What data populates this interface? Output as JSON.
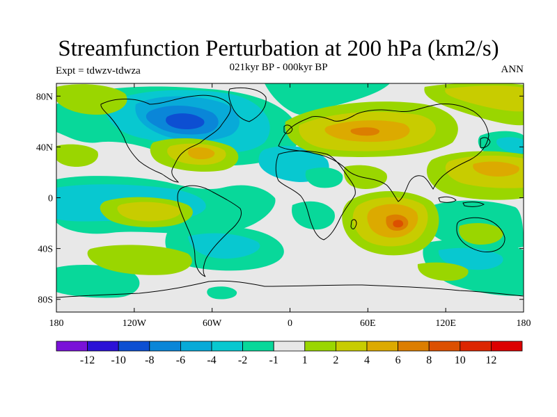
{
  "header": {
    "title": "Streamfunction Perturbation at 200 hPa (km2/s)",
    "subtitle": "021kyr BP - 000kyr BP",
    "left_label": "Expt = tdwzv-tdwza",
    "right_label": "ANN"
  },
  "map": {
    "projection": "cylindrical equidistant",
    "lon_range": [
      -180,
      180
    ],
    "lat_range": [
      -90,
      90
    ],
    "lat_ticks": [
      {
        "value": 80,
        "label": "80N"
      },
      {
        "value": 40,
        "label": "40N"
      },
      {
        "value": 0,
        "label": "0"
      },
      {
        "value": -40,
        "label": "40S"
      },
      {
        "value": -80,
        "label": "80S"
      }
    ],
    "lon_ticks": [
      {
        "value": -180,
        "label": "180"
      },
      {
        "value": -120,
        "label": "120W"
      },
      {
        "value": -60,
        "label": "60W"
      },
      {
        "value": 0,
        "label": "0"
      },
      {
        "value": 60,
        "label": "60E"
      },
      {
        "value": 120,
        "label": "120E"
      },
      {
        "value": 180,
        "label": "180"
      }
    ]
  },
  "chart_data": {
    "type": "heatmap",
    "title": "Streamfunction Perturbation at 200 hPa (km2/s)",
    "subtitle": "021kyr BP - 000kyr BP",
    "contour_levels": [
      -12,
      -10,
      -8,
      -6,
      -4,
      -2,
      -1,
      1,
      2,
      4,
      6,
      8,
      10,
      12
    ],
    "colorbar_labels": [
      "-12",
      "-10",
      "-8",
      "-6",
      "-4",
      "-2",
      "-1",
      "1",
      "2",
      "4",
      "6",
      "8",
      "10",
      "12"
    ],
    "colorbar_colors": [
      "#7a12d8",
      "#2b12d6",
      "#0d4fd2",
      "#0a86d8",
      "#08aad8",
      "#08c8d0",
      "#08d89a",
      "#e8e8e8",
      "#9ad600",
      "#c8cc00",
      "#dcaa00",
      "#dc7e00",
      "#dc5000",
      "#dc2600",
      "#dc0000"
    ],
    "features": [
      {
        "lon": -90,
        "lat": 52,
        "value": -6
      },
      {
        "lon": -135,
        "lat": 2,
        "value": -2
      },
      {
        "lon": -75,
        "lat": 32,
        "value": 4
      },
      {
        "lon": 55,
        "lat": 50,
        "value": 6
      },
      {
        "lon": 80,
        "lat": -22,
        "value": 8
      },
      {
        "lon": 155,
        "lat": 20,
        "value": 6
      },
      {
        "lon": -120,
        "lat": -10,
        "value": 2
      },
      {
        "lon": 40,
        "lat": 10,
        "value": 2
      },
      {
        "lon": -60,
        "lat": -35,
        "value": -2
      },
      {
        "lon": 160,
        "lat": 80,
        "value": 2
      }
    ]
  }
}
